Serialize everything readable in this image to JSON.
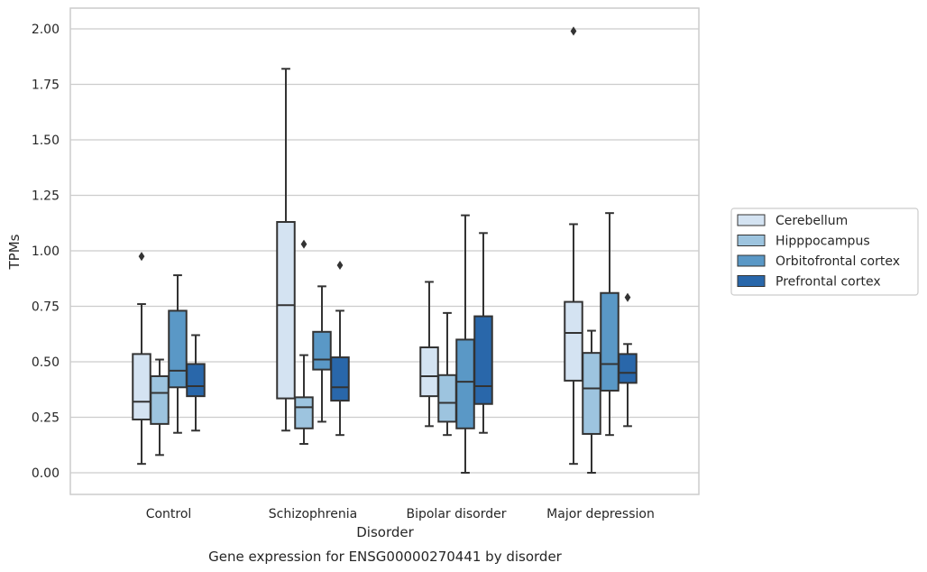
{
  "chart_data": {
    "type": "box",
    "title": "",
    "caption": "Gene expression for ENSG00000270441 by disorder",
    "xlabel": "Disorder",
    "ylabel": "TPMs",
    "ylim": [
      -0.1,
      2.1
    ],
    "yticks": [
      0.0,
      0.25,
      0.5,
      0.75,
      1.0,
      1.25,
      1.5,
      1.75,
      2.0
    ],
    "ytick_labels": [
      "0.00",
      "0.25",
      "0.50",
      "0.75",
      "1.00",
      "1.25",
      "1.50",
      "1.75",
      "2.00"
    ],
    "grid": "horizontal",
    "legend_position": "right",
    "categories": [
      "Control",
      "Schizophrenia",
      "Bipolar disorder",
      "Major depression"
    ],
    "series": [
      {
        "name": "Cerebellum",
        "color": "#d4e3f2",
        "boxes": [
          {
            "whisker_low": 0.04,
            "q1": 0.24,
            "median": 0.32,
            "q3": 0.535,
            "whisker_high": 0.76,
            "outliers": [
              0.975
            ]
          },
          {
            "whisker_low": 0.19,
            "q1": 0.335,
            "median": 0.755,
            "q3": 1.13,
            "whisker_high": 1.82,
            "outliers": []
          },
          {
            "whisker_low": 0.21,
            "q1": 0.345,
            "median": 0.435,
            "q3": 0.565,
            "whisker_high": 0.86,
            "outliers": []
          },
          {
            "whisker_low": 0.04,
            "q1": 0.415,
            "median": 0.63,
            "q3": 0.77,
            "whisker_high": 1.12,
            "outliers": [
              1.99
            ]
          }
        ]
      },
      {
        "name": "Hipppocampus",
        "color": "#9dc4df",
        "boxes": [
          {
            "whisker_low": 0.08,
            "q1": 0.22,
            "median": 0.36,
            "q3": 0.435,
            "whisker_high": 0.51,
            "outliers": []
          },
          {
            "whisker_low": 0.13,
            "q1": 0.2,
            "median": 0.295,
            "q3": 0.34,
            "whisker_high": 0.53,
            "outliers": [
              1.03
            ]
          },
          {
            "whisker_low": 0.17,
            "q1": 0.23,
            "median": 0.315,
            "q3": 0.44,
            "whisker_high": 0.72,
            "outliers": []
          },
          {
            "whisker_low": 0.0,
            "q1": 0.175,
            "median": 0.38,
            "q3": 0.54,
            "whisker_high": 0.64,
            "outliers": []
          }
        ]
      },
      {
        "name": "Orbitofrontal cortex",
        "color": "#5a98c6",
        "boxes": [
          {
            "whisker_low": 0.18,
            "q1": 0.385,
            "median": 0.46,
            "q3": 0.73,
            "whisker_high": 0.89,
            "outliers": []
          },
          {
            "whisker_low": 0.23,
            "q1": 0.465,
            "median": 0.51,
            "q3": 0.635,
            "whisker_high": 0.84,
            "outliers": []
          },
          {
            "whisker_low": 0.0,
            "q1": 0.2,
            "median": 0.41,
            "q3": 0.6,
            "whisker_high": 1.16,
            "outliers": []
          },
          {
            "whisker_low": 0.17,
            "q1": 0.37,
            "median": 0.49,
            "q3": 0.81,
            "whisker_high": 1.17,
            "outliers": []
          }
        ]
      },
      {
        "name": "Prefrontal cortex",
        "color": "#2967aa",
        "boxes": [
          {
            "whisker_low": 0.19,
            "q1": 0.345,
            "median": 0.39,
            "q3": 0.49,
            "whisker_high": 0.62,
            "outliers": []
          },
          {
            "whisker_low": 0.17,
            "q1": 0.325,
            "median": 0.385,
            "q3": 0.52,
            "whisker_high": 0.73,
            "outliers": [
              0.935
            ]
          },
          {
            "whisker_low": 0.18,
            "q1": 0.31,
            "median": 0.39,
            "q3": 0.705,
            "whisker_high": 1.08,
            "outliers": []
          },
          {
            "whisker_low": 0.21,
            "q1": 0.405,
            "median": 0.45,
            "q3": 0.535,
            "whisker_high": 0.58,
            "outliers": [
              0.79
            ]
          }
        ]
      }
    ],
    "style": {
      "grid_color": "#cccccc",
      "box_edge_color": "#333333",
      "text_color": "#262626"
    }
  }
}
